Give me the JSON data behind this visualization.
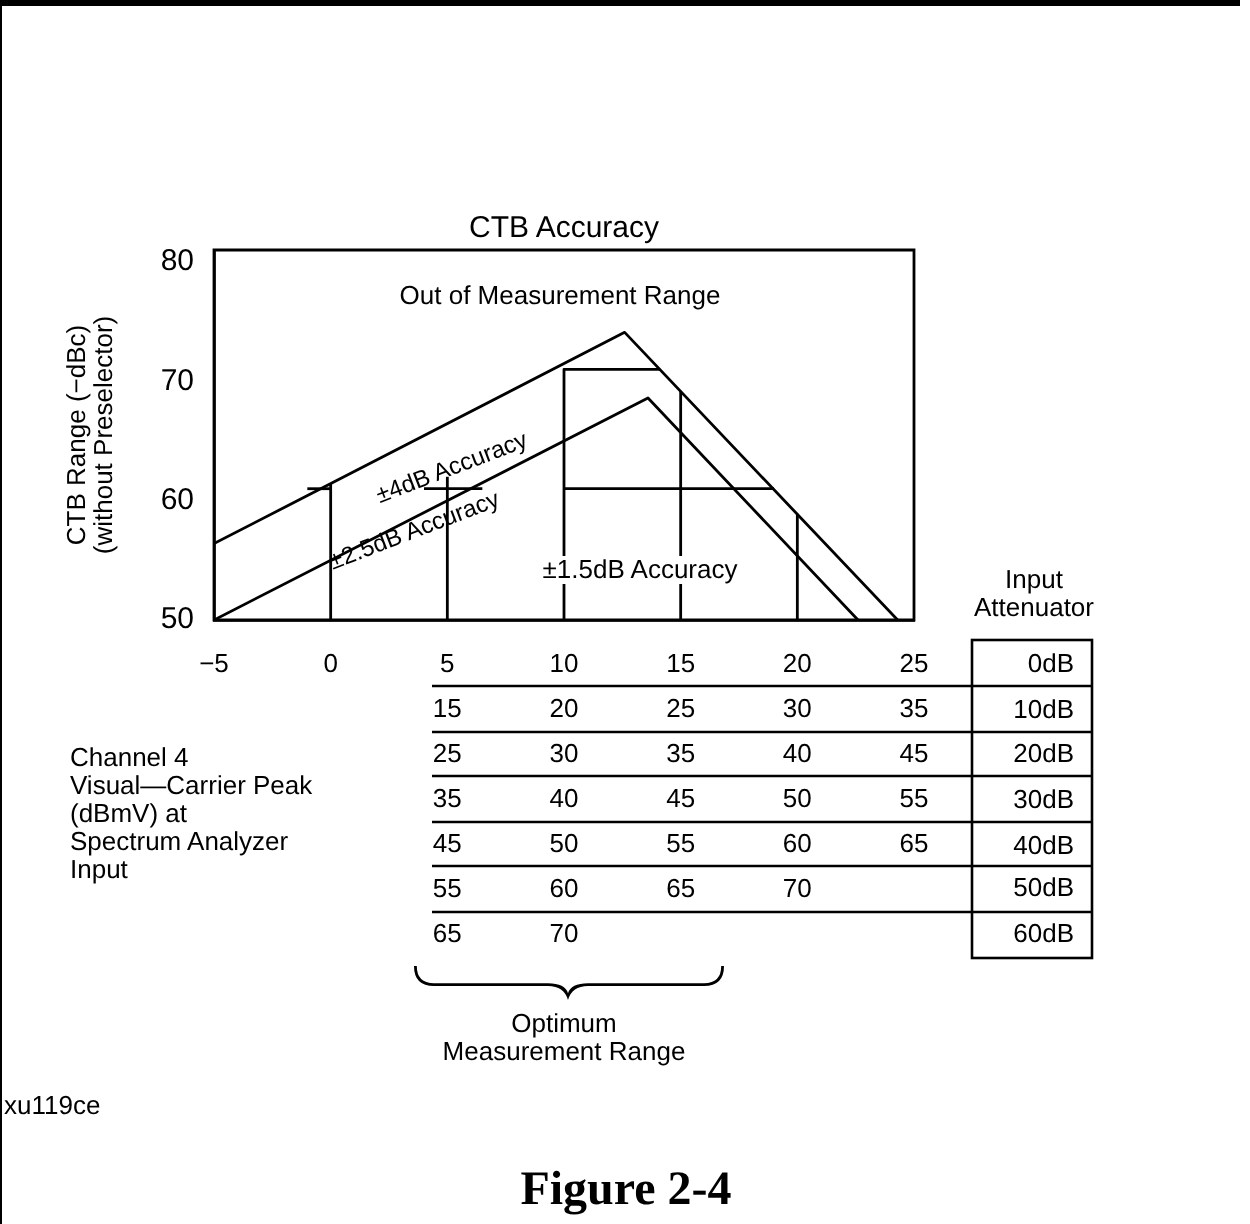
{
  "chart_data": {
    "type": "line",
    "title": "CTB Accuracy",
    "ylabel": "CTB Range (−dBc)\n(without Preselector)",
    "xlim": [
      -5,
      25
    ],
    "ylim": [
      50,
      81
    ],
    "yticks": [
      50,
      60,
      70,
      80
    ],
    "xticks": [
      {
        "value": -5,
        "label": "−5"
      },
      {
        "value": 0,
        "label": "0"
      },
      {
        "value": 5,
        "label": "5\n15\n25\n35\n45\n55\n65"
      },
      {
        "value": 10,
        "label": "10\n20\n30\n40\n50\n60\n70"
      },
      {
        "value": 15,
        "label": "15\n25\n35\n45\n55\n65"
      },
      {
        "value": 20,
        "label": "20\n30\n40\n50\n60\n70"
      },
      {
        "value": 25,
        "label": "25\n35\n45\n55\n65"
      }
    ],
    "grid": false,
    "legend": false,
    "marker": "none",
    "line_style": "solid",
    "series": [
      {
        "color": "#000000",
        "x": [
          -5,
          12.6,
          24.3
        ],
        "values": [
          56.4,
          74.1,
          50
        ]
      },
      {
        "color": "#000000",
        "x": [
          -5,
          13.6,
          22.6
        ],
        "values": [
          50,
          68.6,
          50
        ]
      },
      {
        "color": "#000000",
        "x": [
          -1,
          0
        ],
        "values": [
          61,
          61
        ]
      },
      {
        "color": "#000000",
        "x": [
          0,
          0
        ],
        "values": [
          50,
          61.4
        ]
      },
      {
        "color": "#000000",
        "x": [
          4,
          6.5
        ],
        "values": [
          61,
          61
        ]
      },
      {
        "color": "#000000",
        "x": [
          5,
          5
        ],
        "values": [
          50,
          62
        ]
      },
      {
        "color": "#000000",
        "x": [
          10,
          10,
          14.1
        ],
        "values": [
          50,
          71,
          71
        ]
      },
      {
        "color": "#000000",
        "x": [
          15,
          15
        ],
        "values": [
          50,
          69.2
        ]
      },
      {
        "color": "#000000",
        "x": [
          10,
          19
        ],
        "values": [
          61,
          61
        ]
      },
      {
        "color": "#000000",
        "x": [
          20,
          20
        ],
        "values": [
          50,
          58.9
        ]
      }
    ],
    "annotations": [
      "Out of Measurement Range",
      {
        "text": "±4dB Accuracy",
        "x": 5.2,
        "y": 62.7
      },
      "±2.5dB Accuracy",
      "±1.5dB Accuracy",
      "Input\nAttenuator",
      "0dB",
      "10dB",
      "20dB",
      "30dB",
      "40dB",
      "50dB",
      "60dB",
      "Channel 4\nVisual—Carrier Peak\n(dBmV) at\nSpectrum Analyzer\nInput",
      "Optimum\nMeasurement Range",
      "xu119ce",
      "Figure 2-4"
    ]
  }
}
